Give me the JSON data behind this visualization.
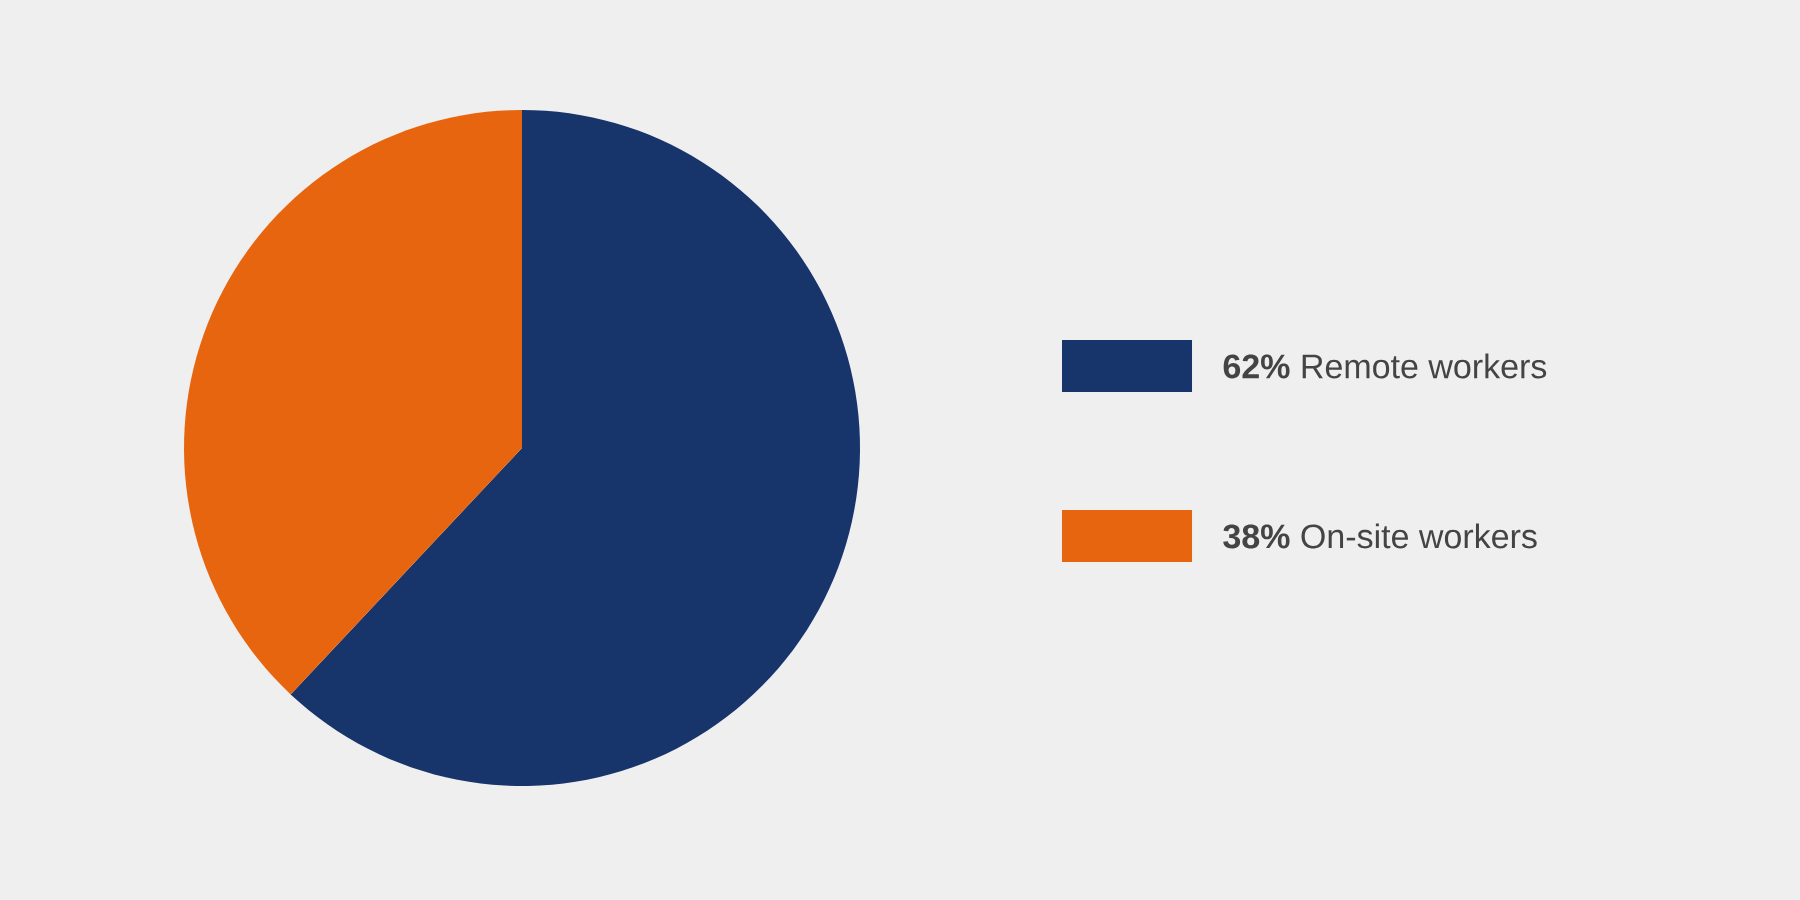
{
  "chart_data": {
    "type": "pie",
    "categories": [
      "**62%** Remote workers",
      "**38%** On-site workers"
    ],
    "values": [
      62,
      38
    ],
    "colors": [
      "#17346b",
      "#e8650f"
    ],
    "legend": "right"
  }
}
